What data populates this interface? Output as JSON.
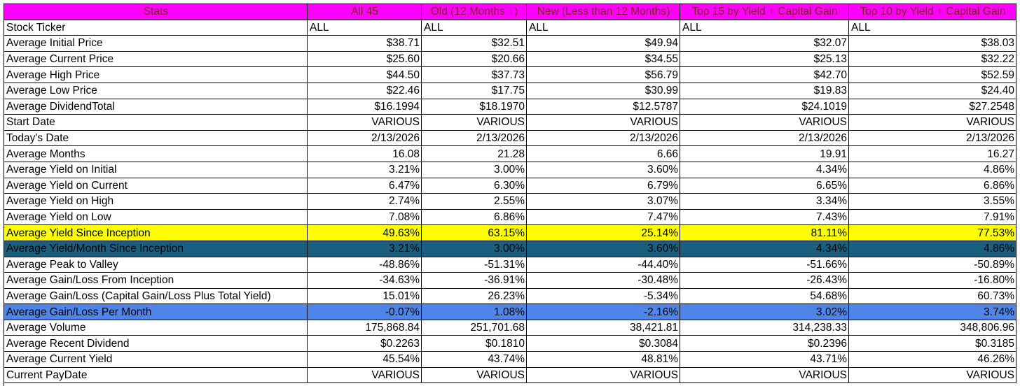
{
  "header": [
    "Stats",
    "All 45",
    "Old (12 Months +)",
    "New (Less than 12 Months)",
    "Top 15 by Yield + Capital Gain",
    "Top 10 by Yield + Capital Gain"
  ],
  "rows": [
    {
      "label": "Stock Ticker",
      "values": [
        "ALL",
        "ALL",
        "ALL",
        "ALL",
        "ALL"
      ],
      "align": "left",
      "highlight": ""
    },
    {
      "label": "Average Initial Price",
      "values": [
        "$38.71",
        "$32.51",
        "$49.94",
        "$32.07",
        "$38.03"
      ],
      "align": "right",
      "highlight": ""
    },
    {
      "label": "Average Current Price",
      "values": [
        "$25.60",
        "$20.66",
        "$34.55",
        "$25.13",
        "$32.22"
      ],
      "align": "right",
      "highlight": ""
    },
    {
      "label": "Average High Price",
      "values": [
        "$44.50",
        "$37.73",
        "$56.79",
        "$42.70",
        "$52.59"
      ],
      "align": "right",
      "highlight": ""
    },
    {
      "label": "Average Low Price",
      "values": [
        "$22.46",
        "$17.75",
        "$30.99",
        "$19.83",
        "$24.40"
      ],
      "align": "right",
      "highlight": ""
    },
    {
      "label": "Average DividendTotal",
      "values": [
        "$16.1994",
        "$18.1970",
        "$12.5787",
        "$24.1019",
        "$27.2548"
      ],
      "align": "right",
      "highlight": ""
    },
    {
      "label": "Start Date",
      "values": [
        "VARIOUS",
        "VARIOUS",
        "VARIOUS",
        "VARIOUS",
        "VARIOUS"
      ],
      "align": "right",
      "highlight": ""
    },
    {
      "label": "Today's Date",
      "values": [
        "2/13/2026",
        "2/13/2026",
        "2/13/2026",
        "2/13/2026",
        "2/13/2026"
      ],
      "align": "right",
      "highlight": ""
    },
    {
      "label": "Average Months",
      "values": [
        "16.08",
        "21.28",
        "6.66",
        "19.91",
        "16.27"
      ],
      "align": "right",
      "highlight": ""
    },
    {
      "label": "Average Yield on Initial",
      "values": [
        "3.21%",
        "3.00%",
        "3.60%",
        "4.34%",
        "4.86%"
      ],
      "align": "right",
      "highlight": ""
    },
    {
      "label": "Average Yield on Current",
      "values": [
        "6.47%",
        "6.30%",
        "6.79%",
        "6.65%",
        "6.86%"
      ],
      "align": "right",
      "highlight": ""
    },
    {
      "label": "Average Yield on High",
      "values": [
        "2.74%",
        "2.55%",
        "3.07%",
        "3.34%",
        "3.55%"
      ],
      "align": "right",
      "highlight": ""
    },
    {
      "label": "Average Yield on Low",
      "values": [
        "7.08%",
        "6.86%",
        "7.47%",
        "7.43%",
        "7.91%"
      ],
      "align": "right",
      "highlight": ""
    },
    {
      "label": "Average Yield Since Inception",
      "values": [
        "49.63%",
        "63.15%",
        "25.14%",
        "81.11%",
        "77.53%"
      ],
      "align": "right",
      "highlight": "yellow"
    },
    {
      "label": "Average Yield/Month Since Inception",
      "values": [
        "3.21%",
        "3.00%",
        "3.60%",
        "4.34%",
        "4.86%"
      ],
      "align": "right",
      "highlight": "teal"
    },
    {
      "label": "Average Peak to Valley",
      "values": [
        "-48.86%",
        "-51.31%",
        "-44.40%",
        "-51.66%",
        "-50.89%"
      ],
      "align": "right",
      "highlight": ""
    },
    {
      "label": "Average Gain/Loss From Inception",
      "values": [
        "-34.63%",
        "-36.91%",
        "-30.48%",
        "-26.43%",
        "-16.80%"
      ],
      "align": "right",
      "highlight": ""
    },
    {
      "label": "Average Gain/Loss (Capital Gain/Loss Plus Total Yield)",
      "values": [
        "15.01%",
        "26.23%",
        "-5.34%",
        "54.68%",
        "60.73%"
      ],
      "align": "right",
      "highlight": ""
    },
    {
      "label": "Average Gain/Loss Per Month",
      "values": [
        "-0.07%",
        "1.08%",
        "-2.16%",
        "3.02%",
        "3.74%"
      ],
      "align": "right",
      "highlight": "blue"
    },
    {
      "label": "Average Volume",
      "values": [
        "175,868.84",
        "251,701.68",
        "38,421.81",
        "314,238.33",
        "348,806.96"
      ],
      "align": "right",
      "highlight": ""
    },
    {
      "label": "Average Recent Dividend",
      "values": [
        "$0.2263",
        "$0.1810",
        "$0.3084",
        "$0.2396",
        "$0.3185"
      ],
      "align": "right",
      "highlight": ""
    },
    {
      "label": "Average Current Yield",
      "values": [
        "45.54%",
        "43.74%",
        "48.81%",
        "43.71%",
        "46.26%"
      ],
      "align": "right",
      "highlight": ""
    },
    {
      "label": "Current PayDate",
      "values": [
        "VARIOUS",
        "VARIOUS",
        "VARIOUS",
        "VARIOUS",
        "VARIOUS"
      ],
      "align": "right",
      "highlight": ""
    }
  ],
  "colors": {
    "header_bg": "#ff00ff",
    "header_text": "#7a1c1c",
    "yellow_row": "#ffff00",
    "teal_row": "#1b5f80",
    "blue_row": "#4d86e8"
  }
}
